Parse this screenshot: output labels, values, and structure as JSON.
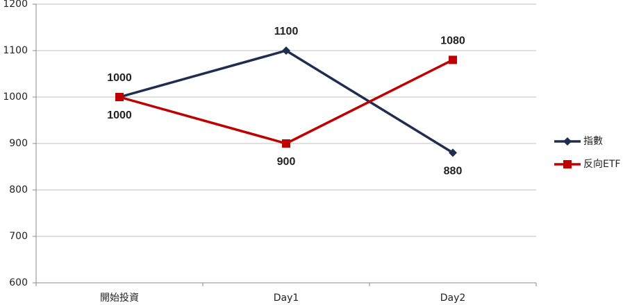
{
  "chart_data": {
    "type": "line",
    "categories": [
      "開始投資",
      "Day1",
      "Day2"
    ],
    "series": [
      {
        "name": "指數",
        "color": "#1f2d4f",
        "marker": "diamond",
        "values": [
          1000,
          1100,
          880
        ]
      },
      {
        "name": "反向ETF",
        "color": "#c00000",
        "marker": "square",
        "values": [
          1000,
          900,
          1080
        ]
      }
    ],
    "ylim": [
      600,
      1200
    ],
    "yticks": [
      600,
      700,
      800,
      900,
      1000,
      1100,
      1200
    ],
    "grid": true,
    "legend": "right"
  }
}
